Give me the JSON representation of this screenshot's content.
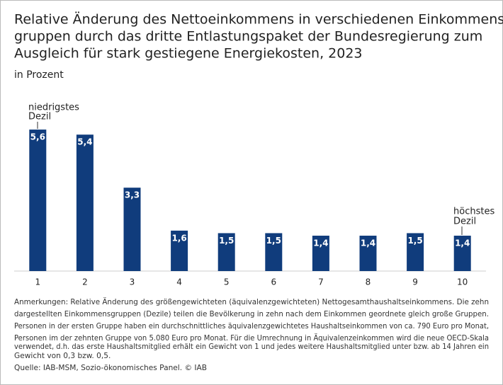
{
  "chart_data": {
    "type": "bar",
    "title": [
      "Relative Änderung des Nettoeinkommens in verschiedenen Einkommens-",
      "gruppen durch das dritte Entlastungspaket der Bundesregierung zum",
      "Ausgleich für stark gestiegene Energiekosten, 2023"
    ],
    "subtitle": "in Prozent",
    "categories": [
      "1",
      "2",
      "3",
      "4",
      "5",
      "6",
      "7",
      "8",
      "9",
      "10"
    ],
    "values": [
      5.6,
      5.4,
      3.3,
      1.6,
      1.5,
      1.5,
      1.4,
      1.4,
      1.5,
      1.4
    ],
    "value_labels": [
      "5,6",
      "5,4",
      "3,3",
      "1,6",
      "1,5",
      "1,5",
      "1,4",
      "1,4",
      "1,5",
      "1,4"
    ],
    "color": "#103c7c",
    "annotations": [
      [
        "niedrigstes",
        "Dezil"
      ],
      [
        "höchstes",
        "Dezil"
      ]
    ],
    "notes": [
      "Anmerkungen: Relative Änderung des größengewichteten (äquivalenzgewichteten) Nettogesamthaushaltseinkommens. Die zehn",
      "dargestellten Einkommensgruppen (Dezile) teilen die Bevölkerung in zehn nach dem Einkommen geordnete gleich große Gruppen.",
      "Personen in der ersten Gruppe haben ein durchschnittliches äquivalenzgewichtetes Haushaltseinkommen von ca. 790 Euro pro Monat,",
      "Personen im der zehnten Gruppe von 5.080 Euro pro Monat. Für die Umrechnung in Äquivalenzeinkommen wird die neue OECD-Skala",
      "verwendet, d.h. das erste Haushaltsmitglied erhält ein Gewicht von 1 und jedes weitere Haushaltsmitglied unter bzw. ab 14 Jahren ein",
      "Gewicht von 0,3 bzw. 0,5."
    ],
    "source": "Quelle: IAB-MSM, Sozio-ökonomisches Panel. © IAB"
  }
}
